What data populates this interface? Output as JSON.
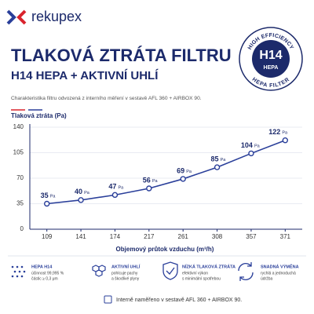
{
  "logo": {
    "text": "rekupex"
  },
  "header": {
    "title": "TLAKOVÁ ZTRÁTA FILTRU",
    "subtitle": "H14 HEPA + AKTIVNÍ UHLÍ",
    "description": "Charakteristika filtru odvozená z interního měření v sestavě AFL 360 + AIRBOX 90."
  },
  "badge": {
    "top": "HIGH EFFICIENCY",
    "grade": "H14",
    "type": "HEPA",
    "bottom": "HEPA FILTER"
  },
  "chart_data": {
    "type": "line",
    "y_label": "Tlaková ztráta (Pa)",
    "x_label": "Objemový průtok vzduchu (m³/h)",
    "categories": [
      "109",
      "141",
      "174",
      "217",
      "261",
      "308",
      "357",
      "371"
    ],
    "series": [
      {
        "name": "Tlaková ztráta",
        "color": "#2a3f9a",
        "values": [
          35,
          40,
          47,
          56,
          69,
          85,
          104,
          122
        ]
      }
    ],
    "value_unit": "Pa",
    "ylim": [
      0,
      140
    ],
    "yticks": [
      0,
      35,
      70,
      105,
      140
    ],
    "grid": true
  },
  "features": [
    {
      "title": "HEPA H14",
      "lines": [
        "účinnost 99,995 %",
        "částic ≥ 0,3 μm"
      ]
    },
    {
      "title": "AKTIVNÍ UHLÍ",
      "lines": [
        "pohlcuje pachy",
        "a škodlivé plyny"
      ]
    },
    {
      "title": "NÍZKÁ TLAKOVÁ ZTRÁTA",
      "lines": [
        "efektivní výkon",
        "s minimální spotřebou"
      ]
    },
    {
      "title": "SNADNÁ VÝMĚNA",
      "lines": [
        "rychlá a jednoduchá",
        "údržba"
      ]
    }
  ],
  "footer": "Interně naměřeno v sestavě AFL 360 + AIRBOX 90."
}
